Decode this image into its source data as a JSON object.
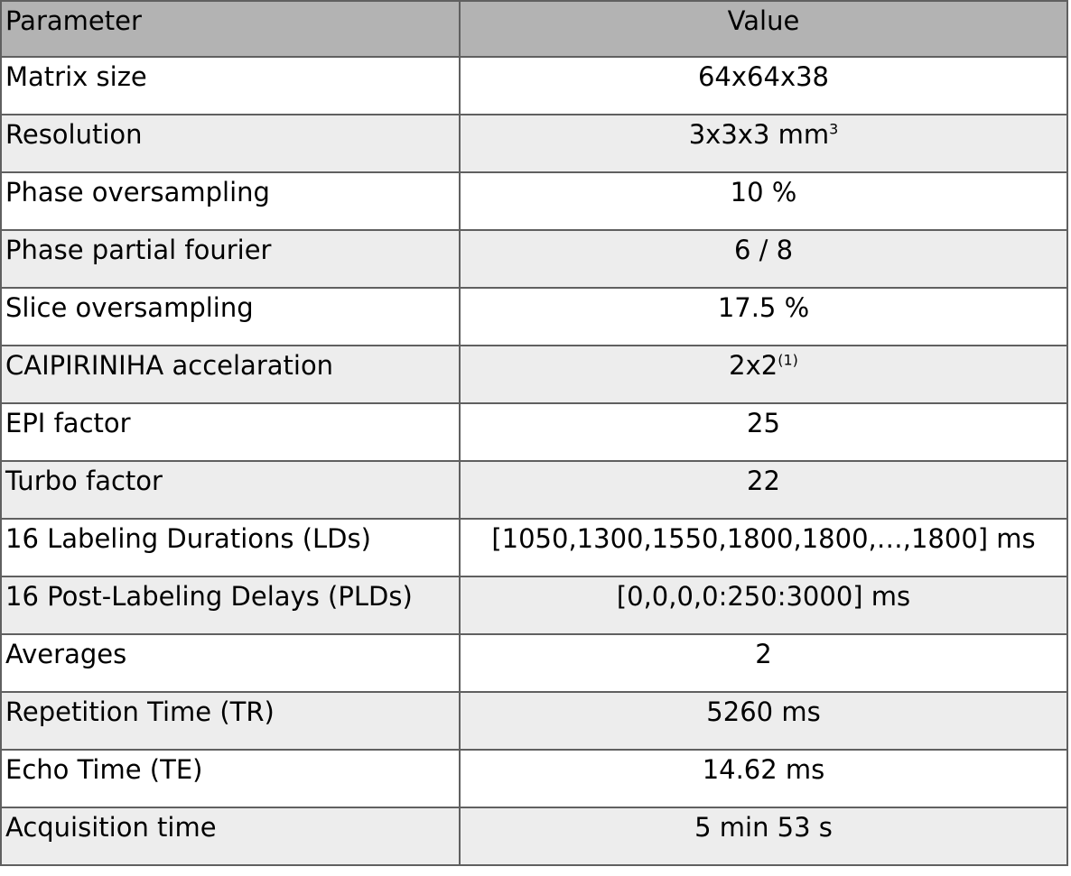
{
  "table": {
    "header": {
      "param": "Parameter",
      "value": "Value"
    },
    "rows": [
      {
        "param": "Matrix size",
        "value": "64x64x38"
      },
      {
        "param": "Resolution",
        "value": "3x3x3 mm",
        "value_sup": "3"
      },
      {
        "param": "Phase oversampling",
        "value": "10 %"
      },
      {
        "param": "Phase partial fourier",
        "value": "6 / 8"
      },
      {
        "param": "Slice oversampling",
        "value": "17.5 %"
      },
      {
        "param": "CAIPIRINIHA accelaration",
        "value": "2x2",
        "value_sup": "(1)"
      },
      {
        "param": "EPI factor",
        "value": "25"
      },
      {
        "param": "Turbo factor",
        "value": "22"
      },
      {
        "param": "16 Labeling Durations (LDs)",
        "value": "[1050,1300,1550,1800,1800,…,1800] ms"
      },
      {
        "param": "16 Post-Labeling Delays (PLDs)",
        "value": "[0,0,0,0:250:3000] ms"
      },
      {
        "param": "Averages",
        "value": "2"
      },
      {
        "param": "Repetition Time (TR)",
        "value": "5260 ms"
      },
      {
        "param": "Echo Time (TE)",
        "value": "14.62 ms"
      },
      {
        "param": "Acquisition time",
        "value": "5 min 53 s"
      }
    ],
    "colors": {
      "header_bg": "#b3b3b3",
      "row_bg": "#ffffff",
      "row_alt_bg": "#ededed",
      "border": "#606060",
      "text": "#000000"
    }
  }
}
